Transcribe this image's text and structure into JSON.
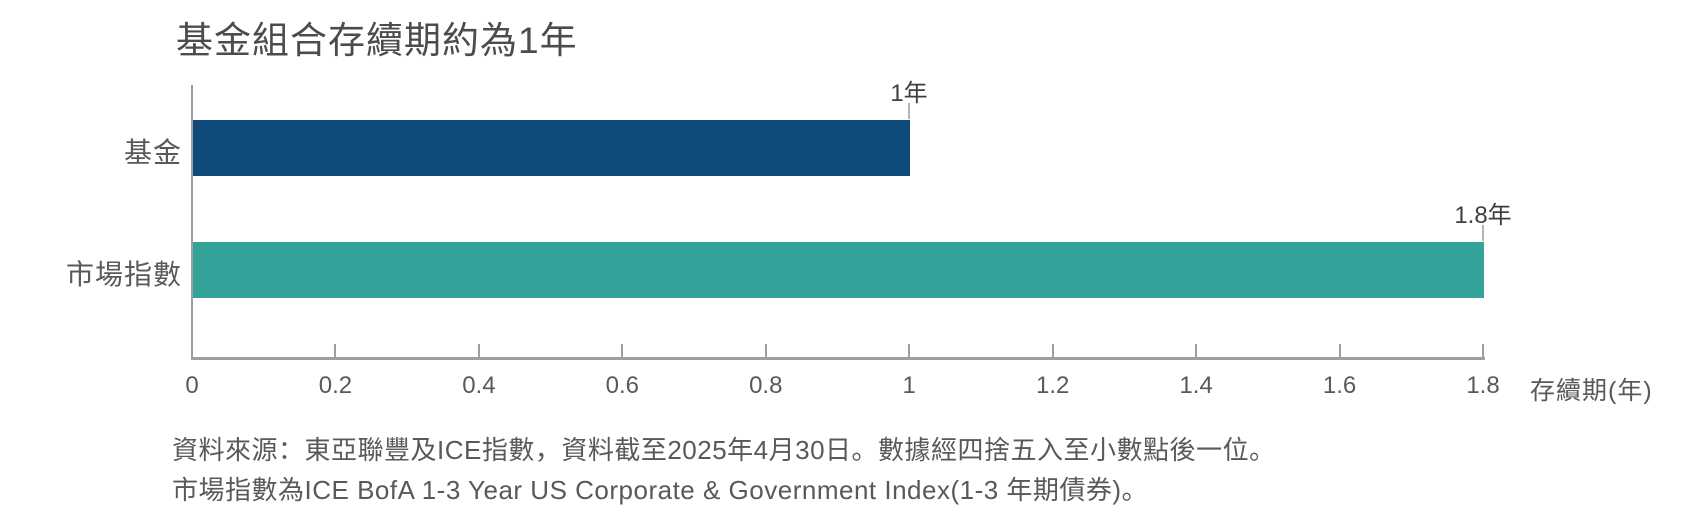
{
  "chart_data": {
    "type": "bar",
    "orientation": "horizontal",
    "title": "基金組合存續期約為1年",
    "categories": [
      "基金",
      "市場指數"
    ],
    "values": [
      1,
      1.8
    ],
    "value_labels": [
      "1年",
      "1.8年"
    ],
    "bar_colors": [
      "#0f4a7b",
      "#33a399"
    ],
    "xlabel": "存續期(年)",
    "xlim": [
      0,
      1.8
    ],
    "x_ticks": [
      "0",
      "0.2",
      "0.4",
      "0.6",
      "0.8",
      "1",
      "1.2",
      "1.4",
      "1.6",
      "1.8"
    ],
    "grid": false,
    "legend": "none"
  },
  "footnotes": [
    "資料來源：東亞聯豐及ICE指數，資料截至2025年4月30日。數據經四捨五入至小數點後一位。",
    "市場指數為ICE BofA 1-3 Year US Corporate & Government Index(1-3 年期債券)。"
  ],
  "colors": {
    "bar_fund": "#0f4a7b",
    "bar_index": "#33a399",
    "title_text": "#4c4c4e",
    "body_text": "#58595b",
    "value_text": "#3f3f41",
    "axis_line": "#9d9ea0",
    "leader_line": "#b4b4b4"
  }
}
